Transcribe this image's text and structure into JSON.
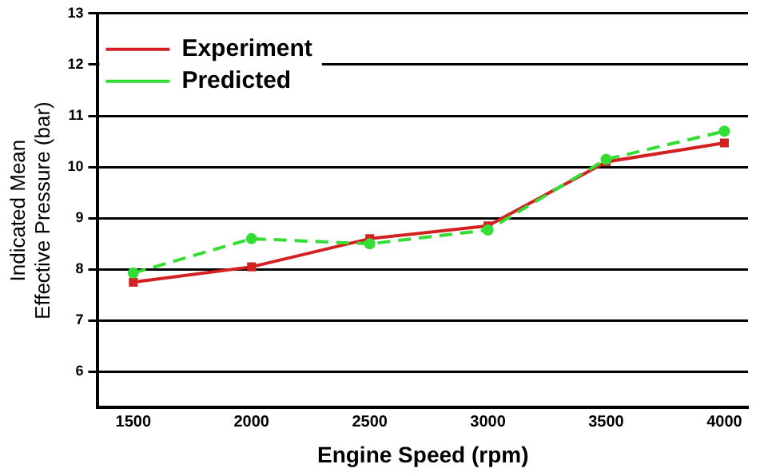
{
  "chart_data": {
    "type": "line",
    "xlabel": "Engine Speed (rpm)",
    "ylabel": "Indicated Mean\nEffective Pressure (bar)",
    "x": [
      1500,
      2000,
      2500,
      3000,
      3500,
      4000
    ],
    "series": [
      {
        "name": "Experiment",
        "color": "#d42020",
        "values": [
          7.75,
          8.05,
          8.6,
          8.85,
          10.1,
          10.47
        ],
        "marker": "square",
        "line_style": "solid"
      },
      {
        "name": "Predicted",
        "color": "#33dd33",
        "values": [
          7.93,
          8.6,
          8.5,
          8.77,
          10.15,
          10.7
        ],
        "marker": "circle",
        "line_style": "dashed"
      }
    ],
    "xlim": [
      1350,
      4100
    ],
    "xticks": [
      1500,
      2000,
      2500,
      3000,
      3500,
      4000
    ],
    "ylim": [
      5.3,
      13
    ],
    "yticks": [
      6,
      7,
      8,
      9,
      10,
      11,
      12,
      13
    ],
    "grid": "y",
    "legend": "top left"
  }
}
